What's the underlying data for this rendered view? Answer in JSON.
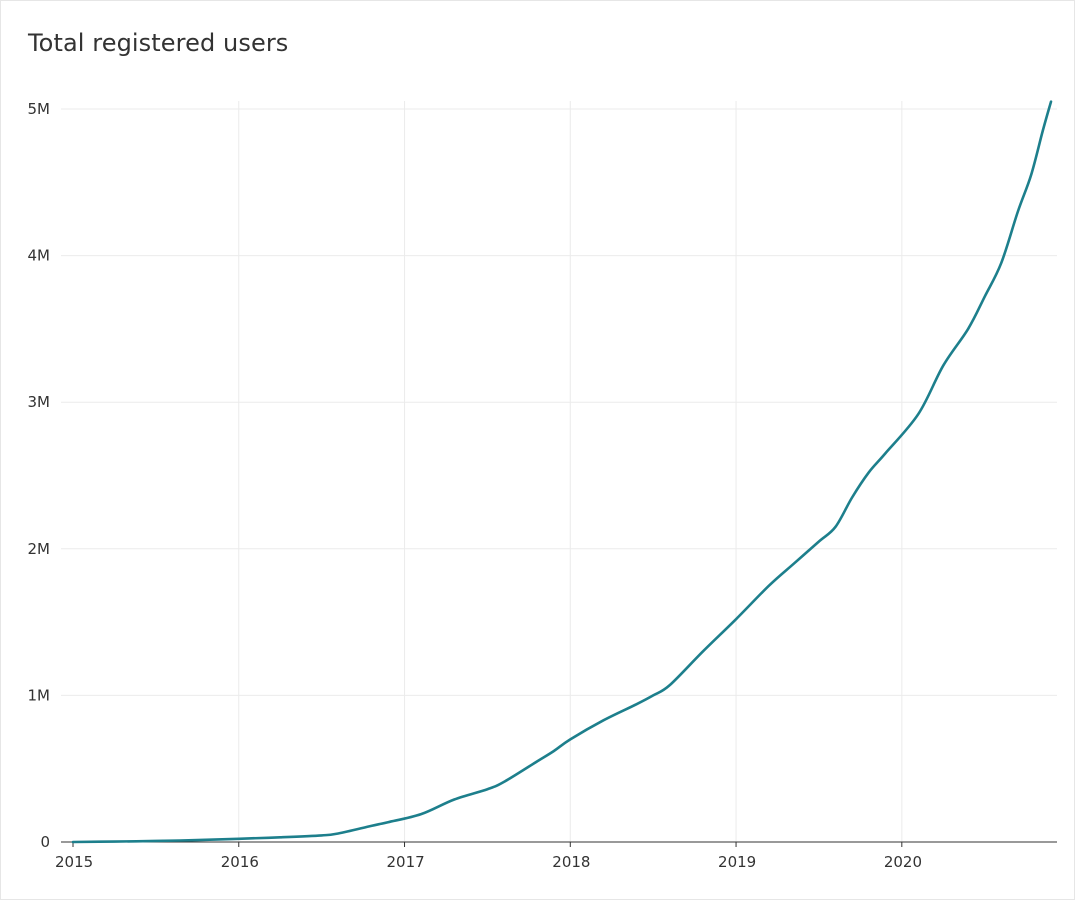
{
  "chart_data": {
    "type": "line",
    "title": "Total registered users",
    "xlabel": "",
    "ylabel": "",
    "x_ticks": [
      "2015",
      "2016",
      "2017",
      "2018",
      "2019",
      "2020"
    ],
    "x_range": [
      2015.0,
      2020.9
    ],
    "y_ticks": [
      {
        "value": 0,
        "label": "0"
      },
      {
        "value": 1000000,
        "label": "1M"
      },
      {
        "value": 2000000,
        "label": "2M"
      },
      {
        "value": 3000000,
        "label": "3M"
      },
      {
        "value": 4000000,
        "label": "4M"
      },
      {
        "value": 5000000,
        "label": "5M"
      }
    ],
    "ylim": [
      0,
      5000000
    ],
    "grid": true,
    "colors": {
      "line": "#1d7f8c",
      "grid": "#ebebeb",
      "axis": "#333333"
    },
    "series": [
      {
        "values": [
          [
            2015.0,
            0
          ],
          [
            2015.25,
            3000
          ],
          [
            2015.5,
            7000
          ],
          [
            2015.75,
            13000
          ],
          [
            2016.0,
            22000
          ],
          [
            2016.25,
            32000
          ],
          [
            2016.5,
            45000
          ],
          [
            2016.6,
            58000
          ],
          [
            2016.8,
            110000
          ],
          [
            2016.9,
            135000
          ],
          [
            2017.1,
            190000
          ],
          [
            2017.3,
            290000
          ],
          [
            2017.5,
            360000
          ],
          [
            2017.6,
            410000
          ],
          [
            2017.8,
            550000
          ],
          [
            2017.9,
            620000
          ],
          [
            2018.0,
            700000
          ],
          [
            2018.2,
            830000
          ],
          [
            2018.4,
            940000
          ],
          [
            2018.5,
            1000000
          ],
          [
            2018.6,
            1070000
          ],
          [
            2018.8,
            1300000
          ],
          [
            2019.0,
            1520000
          ],
          [
            2019.2,
            1750000
          ],
          [
            2019.35,
            1900000
          ],
          [
            2019.5,
            2050000
          ],
          [
            2019.6,
            2150000
          ],
          [
            2019.7,
            2350000
          ],
          [
            2019.8,
            2520000
          ],
          [
            2019.9,
            2650000
          ],
          [
            2020.1,
            2920000
          ],
          [
            2020.25,
            3250000
          ],
          [
            2020.4,
            3500000
          ],
          [
            2020.5,
            3720000
          ],
          [
            2020.6,
            3950000
          ],
          [
            2020.7,
            4300000
          ],
          [
            2020.78,
            4550000
          ],
          [
            2020.85,
            4850000
          ],
          [
            2020.9,
            5050000
          ]
        ]
      }
    ]
  }
}
